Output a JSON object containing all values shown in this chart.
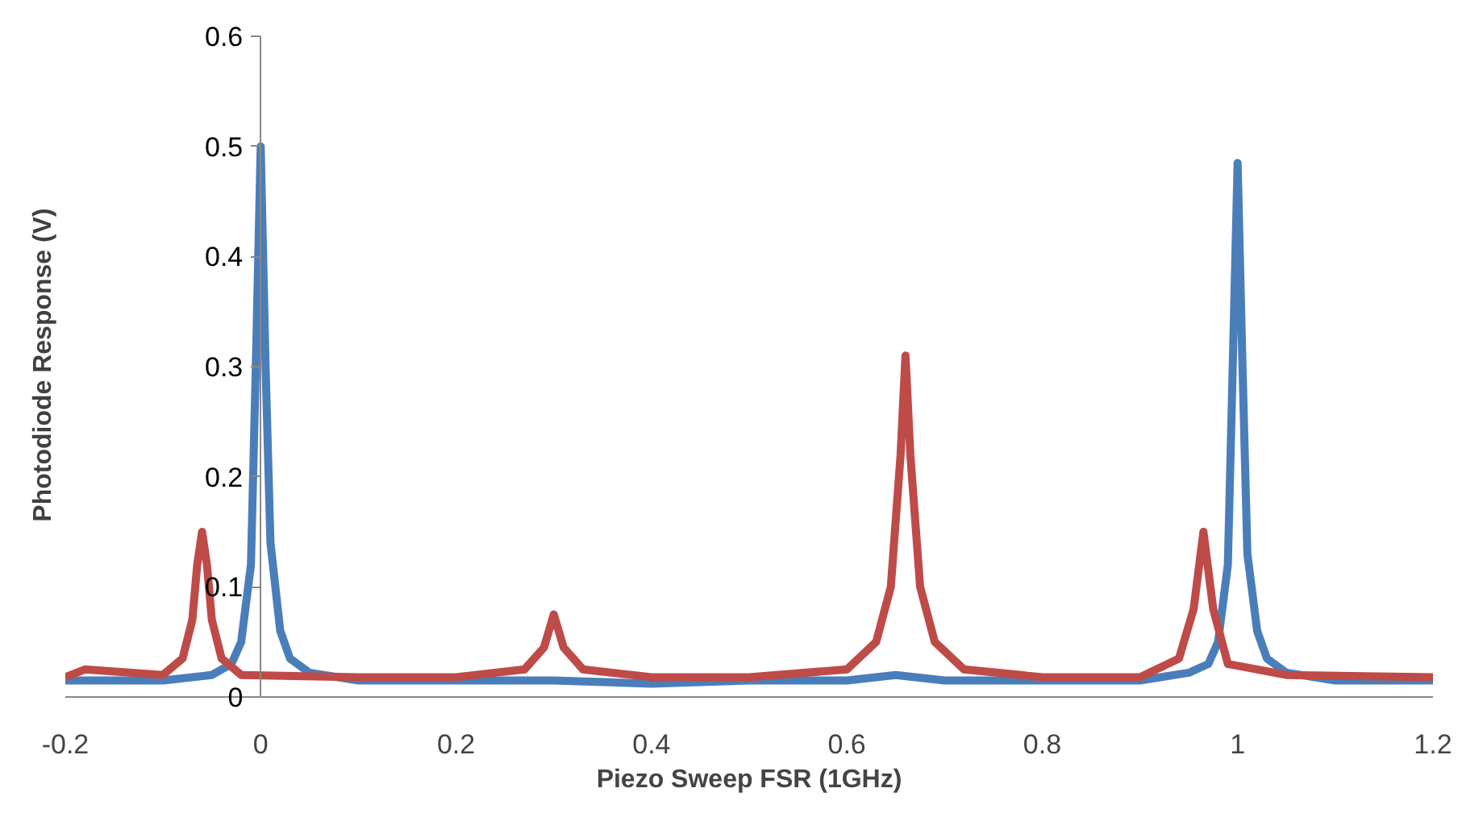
{
  "chart_data": {
    "type": "line",
    "xlabel": "Piezo Sweep FSR (1GHz)",
    "ylabel": "Photodiode Response (V)",
    "xlim": [
      -0.2,
      1.2
    ],
    "xticks": [
      -0.2,
      0,
      0.2,
      0.4,
      0.6,
      0.8,
      1,
      1.2
    ],
    "ylim": [
      0,
      0.6
    ],
    "yticks": [
      0,
      0.1,
      0.2,
      0.3,
      0.4,
      0.5,
      0.6
    ],
    "grid": false,
    "marker": "none",
    "line_style": "solid",
    "series": [
      {
        "color": "#4a7ebb",
        "x": [
          -0.2,
          -0.1,
          -0.05,
          -0.03,
          -0.02,
          -0.01,
          -0.005,
          0,
          0.005,
          0.01,
          0.02,
          0.03,
          0.05,
          0.1,
          0.2,
          0.3,
          0.4,
          0.5,
          0.6,
          0.65,
          0.7,
          0.8,
          0.9,
          0.95,
          0.97,
          0.98,
          0.99,
          0.995,
          1.0,
          1.005,
          1.01,
          1.02,
          1.03,
          1.05,
          1.1,
          1.2
        ],
        "values": [
          0.015,
          0.015,
          0.02,
          0.03,
          0.05,
          0.12,
          0.3,
          0.5,
          0.3,
          0.14,
          0.06,
          0.035,
          0.022,
          0.015,
          0.015,
          0.015,
          0.012,
          0.015,
          0.015,
          0.02,
          0.015,
          0.015,
          0.015,
          0.022,
          0.03,
          0.05,
          0.12,
          0.3,
          0.485,
          0.3,
          0.13,
          0.06,
          0.035,
          0.022,
          0.015,
          0.015
        ]
      },
      {
        "color": "#be4b48",
        "x": [
          -0.2,
          -0.18,
          -0.1,
          -0.08,
          -0.07,
          -0.065,
          -0.06,
          -0.055,
          -0.05,
          -0.04,
          -0.02,
          0.1,
          0.2,
          0.27,
          0.29,
          0.3,
          0.31,
          0.33,
          0.4,
          0.5,
          0.6,
          0.63,
          0.645,
          0.655,
          0.66,
          0.665,
          0.675,
          0.69,
          0.72,
          0.8,
          0.9,
          0.94,
          0.955,
          0.965,
          0.975,
          0.99,
          1.05,
          1.2
        ],
        "values": [
          0.018,
          0.025,
          0.02,
          0.035,
          0.07,
          0.12,
          0.15,
          0.12,
          0.07,
          0.035,
          0.02,
          0.018,
          0.018,
          0.025,
          0.045,
          0.075,
          0.045,
          0.025,
          0.018,
          0.018,
          0.025,
          0.05,
          0.1,
          0.22,
          0.31,
          0.22,
          0.1,
          0.05,
          0.025,
          0.018,
          0.018,
          0.035,
          0.08,
          0.15,
          0.08,
          0.03,
          0.02,
          0.018
        ]
      }
    ]
  }
}
